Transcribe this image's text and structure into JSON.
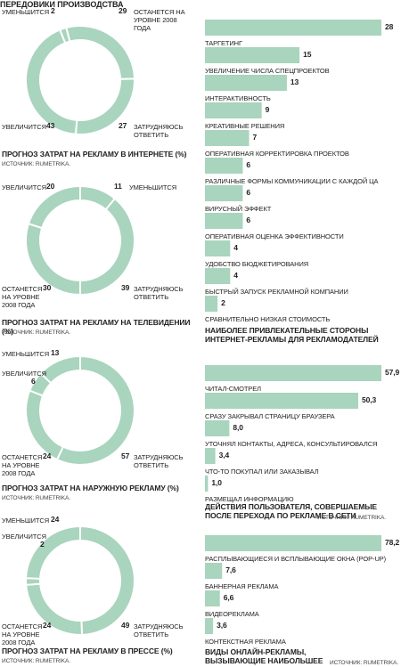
{
  "header": "ПЕРЕДОВИКИ ПРОИЗВОДСТВА",
  "chart_data": [
    {
      "type": "donut",
      "title": "ПРОГНОЗ ЗАТРАТ НА РЕКЛАМУ В ИНТЕРНЕТЕ (%)",
      "source": "ИСТОЧНИК: RUMETRIKA.",
      "categories": [
        "УМЕНЬШИТСЯ",
        "ОСТАНЕТСЯ НА УРОВНЕ 2008 ГОДА",
        "ЗАТРУДНЯЮСЬ ОТВЕТИТЬ",
        "УВЕЛИЧИТСЯ"
      ],
      "values": [
        2,
        29,
        27,
        43
      ],
      "color": "#a9d4bd"
    },
    {
      "type": "donut",
      "title": "ПРОГНОЗ ЗАТРАТ НА РЕКЛАМУ НА ТЕЛЕВИДЕНИИ (%)",
      "source": "ИСТОЧНИК: RUMETRIKA.",
      "categories": [
        "УМЕНЬШИТСЯ",
        "ЗАТРУДНЯЮСЬ ОТВЕТИТЬ",
        "ОСТАНЕТСЯ НА УРОВНЕ 2008 ГОДА",
        "УВЕЛИЧИТСЯ"
      ],
      "values": [
        11,
        39,
        30,
        20
      ],
      "color": "#a9d4bd"
    },
    {
      "type": "donut",
      "title": "ПРОГНОЗ ЗАТРАТ НА НАРУЖНУЮ РЕКЛАМУ (%)",
      "source": "ИСТОЧНИК: RUMETRIKA.",
      "categories": [
        "ЗАТРУДНЯЮСЬ ОТВЕТИТЬ",
        "ОСТАНЕТСЯ НА УРОВНЕ 2008 ГОДА",
        "УВЕЛИЧИТСЯ",
        "УМЕНЬШИТСЯ"
      ],
      "values": [
        57,
        24,
        6,
        13
      ],
      "color": "#a9d4bd"
    },
    {
      "type": "donut",
      "title": "ПРОГНОЗ ЗАТРАТ НА РЕКЛАМУ В ПРЕССЕ (%)",
      "source": "ИСТОЧНИК: RUMETRIKA.",
      "categories": [
        "ЗАТРУДНЯЮСЬ ОТВЕТИТЬ",
        "ОСТАНЕТСЯ НА УРОВНЕ 2008 ГОДА",
        "УВЕЛИЧИТСЯ",
        "УМЕНЬШИТСЯ"
      ],
      "values": [
        49,
        24,
        2,
        24
      ],
      "color": "#a9d4bd"
    },
    {
      "type": "bar",
      "title": "НАИБОЛЕЕ ПРИВЛЕКАТЕЛЬНЫЕ СТОРОНЫ ИНТЕРНЕТ-РЕКЛАМЫ ДЛЯ РЕКЛАМОДАТЕЛЕЙ",
      "categories": [
        "ТАРГЕТИНГ",
        "УВЕЛИЧЕНИЕ ЧИСЛА СПЕЦПРОЕКТОВ",
        "ИНТЕРАКТИВНОСТЬ",
        "КРЕАТИВНЫЕ РЕШЕНИЯ",
        "ОПЕРАТИВНАЯ КОРРЕКТИРОВКА ПРОЕКТОВ",
        "РАЗЛИЧНЫЕ ФОРМЫ КОММУНИКАЦИИ С КАЖДОЙ ЦА",
        "ВИРУСНЫЙ ЭФФЕКТ",
        "ОПЕРАТИВНАЯ ОЦЕНКА  ЭФФЕКТИВНОСТИ",
        "УДОБСТВО БЮДЖЕТИРОВАНИЯ",
        "БЫСТРЫЙ ЗАПУСК РЕКЛАМНОЙ КОМПАНИИ",
        "СРАВНИТЕЛЬНО НИЗКАЯ СТОИМОСТЬ"
      ],
      "values": [
        28,
        15,
        13,
        9,
        7,
        6,
        6,
        6,
        4,
        4,
        2
      ],
      "color": "#a9d4bd"
    },
    {
      "type": "bar",
      "title": "ДЕЙСТВИЯ ПОЛЬЗОВАТЕЛЯ, СОВЕРШАЕМЫЕ ПОСЛЕ ПЕРЕХОДА ПО РЕКЛАМЕ В СЕТИ",
      "source": "ИСТОЧНИК: RUMETRIKA.",
      "categories": [
        "ЧИТАЛ-СМОТРЕЛ",
        "СРАЗУ ЗАКРЫВАЛ СТРАНИЦУ БРАУЗЕРА",
        "УТОЧНЯЛ КОНТАКТЫ, АДРЕСА, КОНСУЛЬТИРОВАЛСЯ",
        "ЧТО-ТО ПОКУПАЛ ИЛИ ЗАКАЗЫВАЛ",
        "РАЗМЕЩАЛ ИНФОРМАЦИЮ"
      ],
      "values": [
        57.9,
        50.3,
        8.0,
        3.4,
        1.0
      ],
      "value_labels": [
        "57,9",
        "50,3",
        "8,0",
        "3,4",
        "1,0"
      ],
      "color": "#a9d4bd"
    },
    {
      "type": "bar",
      "title": "ВИДЫ ОНЛАЙН-РЕКЛАМЫ, ВЫЗЫВАЮЩИЕ НАИБОЛЬШЕЕ РАЗДРАЖЕНИЕ",
      "source": "ИСТОЧНИК: RUMETRIKA.",
      "categories": [
        "РАСПЛЫВАЮЩИЕСЯ И ВСПЛЫВАЮЩИЕ ОКНА (POP-UP)",
        "БАННЕРНАЯ РЕКЛАМА",
        "ВИДЕОРЕКЛАМА",
        "КОНТЕКСТНАЯ РЕКЛАМА"
      ],
      "values": [
        78.2,
        7.6,
        6.6,
        3.6
      ],
      "value_labels": [
        "78,2",
        "7,6",
        "6,6",
        "3,6"
      ],
      "color": "#a9d4bd"
    }
  ]
}
